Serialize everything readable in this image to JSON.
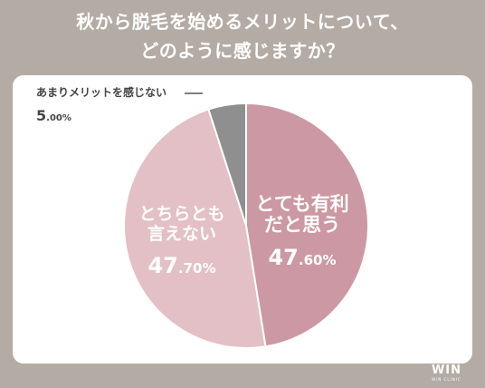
{
  "title": {
    "line1": "秋から脱毛を始めるメリットについて、",
    "line2": "どのように感じますか？"
  },
  "chart_data": {
    "type": "pie",
    "start_angle_deg": 0,
    "direction": "clockwise",
    "series": [
      {
        "label_lines": [
          "とても有利",
          "だと思う"
        ],
        "value": 47.6,
        "value_main": "47",
        "value_decimal": ".60%",
        "color": "#cc98a3",
        "text_color": "#ffffff"
      },
      {
        "label_lines": [
          "とちらとも",
          "言えない"
        ],
        "value": 47.7,
        "value_main": "47",
        "value_decimal": ".70%",
        "color": "#e3c0c5",
        "text_color": "#ffffff"
      },
      {
        "label_lines": [
          "あまりメリットを感じない"
        ],
        "value": 5.0,
        "value_main": "5",
        "value_decimal": ".00%",
        "color": "#8f8f8f",
        "text_color": "#444444"
      }
    ]
  },
  "logo": {
    "main": "WIN",
    "sub": "WIN CLINIC"
  },
  "colors": {
    "background": "#b4aca4",
    "card": "#ffffff"
  }
}
